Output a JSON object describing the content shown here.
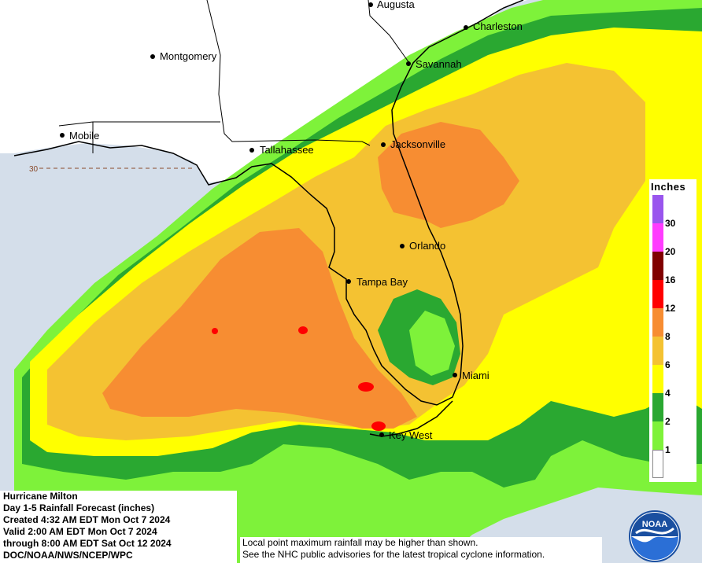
{
  "info": {
    "lines": [
      "Hurricane Milton",
      "Day 1-5 Rainfall Forecast (inches)",
      "Created 4:32 AM EDT Mon Oct 7 2024",
      "Valid 2:00 AM EDT Mon Oct 7 2024",
      "through 8:00 AM EDT Sat Oct 12 2024",
      "DOC/NOAA/NWS/NCEP/WPC"
    ]
  },
  "note": {
    "line1": "Local point maximum rainfall may be higher than shown.",
    "line2": "See the NHC public advisories for the latest tropical cyclone information."
  },
  "legend": {
    "title": "Inches",
    "ticks": [
      "1",
      "2",
      "4",
      "6",
      "8",
      "12",
      "16",
      "20",
      "30"
    ],
    "colors": [
      "#ffffff",
      "#7ef23a",
      "#2aa831",
      "#ffff00",
      "#f4c232",
      "#f78d32",
      "#ff0000",
      "#800000",
      "#ff3cff",
      "#9955ee"
    ]
  },
  "cities": [
    {
      "name": "Augusta"
    },
    {
      "name": "Charleston"
    },
    {
      "name": "Montgomery"
    },
    {
      "name": "Savannah"
    },
    {
      "name": "Mobile"
    },
    {
      "name": "Tallahassee"
    },
    {
      "name": "Jacksonville"
    },
    {
      "name": "Orlando"
    },
    {
      "name": "Tampa Bay"
    },
    {
      "name": "Miami"
    },
    {
      "name": "Key West"
    }
  ],
  "latitude_label": "30",
  "logo": {
    "text": "NOAA"
  },
  "colors": {
    "land": "#ffffff",
    "water": "#d4deea",
    "coast": "#000000"
  }
}
